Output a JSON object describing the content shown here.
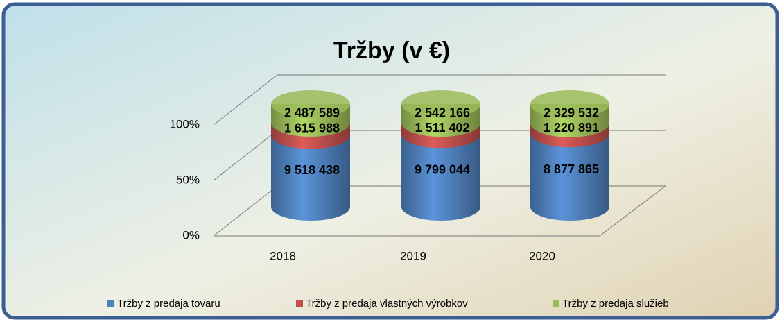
{
  "chart_data": {
    "type": "bar",
    "stacking": "percent",
    "title": "Tržby (v €)",
    "categories": [
      "2018",
      "2019",
      "2020"
    ],
    "series": [
      {
        "name": "Tržby z predaja tovaru",
        "color": "#4f81bd",
        "values": [
          9518438,
          9799044,
          8877865
        ],
        "value_labels": [
          "9 518 438",
          "9 799 044",
          "8 877 865"
        ]
      },
      {
        "name": "Tržby z predaja vlastných výrobkov",
        "color": "#c0504d",
        "values": [
          1615988,
          1511402,
          1220891
        ],
        "value_labels": [
          "1 615 988",
          "1 511 402",
          "1 220 891"
        ]
      },
      {
        "name": "Tržby z predaja služieb",
        "color": "#9bbb59",
        "values": [
          2487589,
          2542166,
          2329532
        ],
        "value_labels": [
          "2 487 589",
          "2 542 166",
          "2 329 532"
        ]
      }
    ],
    "ylim": [
      0,
      100
    ],
    "yticks": [
      {
        "value": 0,
        "label": "0%"
      },
      {
        "value": 50,
        "label": "50%"
      },
      {
        "value": 100,
        "label": "100%"
      }
    ],
    "grid": true,
    "legend": "bottom"
  }
}
